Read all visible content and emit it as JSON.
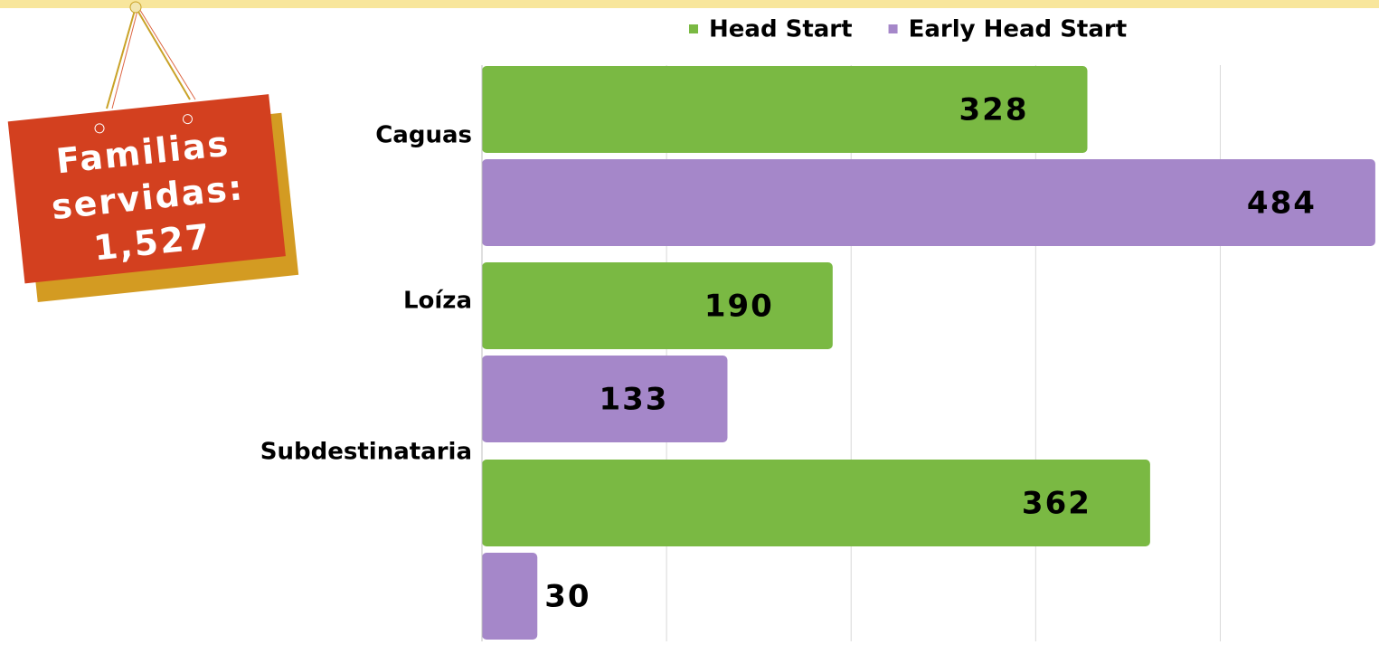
{
  "chart_data": {
    "type": "barh",
    "categories": [
      "Caguas",
      "Loíza",
      "Subdestinataria"
    ],
    "series": [
      {
        "name": "Head Start",
        "color": "#7ab943",
        "values": [
          328,
          190,
          362
        ]
      },
      {
        "name": "Early Head Start",
        "color": "#a587c9",
        "values": [
          484,
          133,
          30
        ]
      }
    ],
    "xlim": [
      0,
      486
    ],
    "xticks": [
      0,
      100,
      200,
      300,
      400
    ],
    "grid": true,
    "legend": "top"
  },
  "sign": {
    "lines": [
      "Familias",
      "servidas:",
      "1,527"
    ]
  }
}
